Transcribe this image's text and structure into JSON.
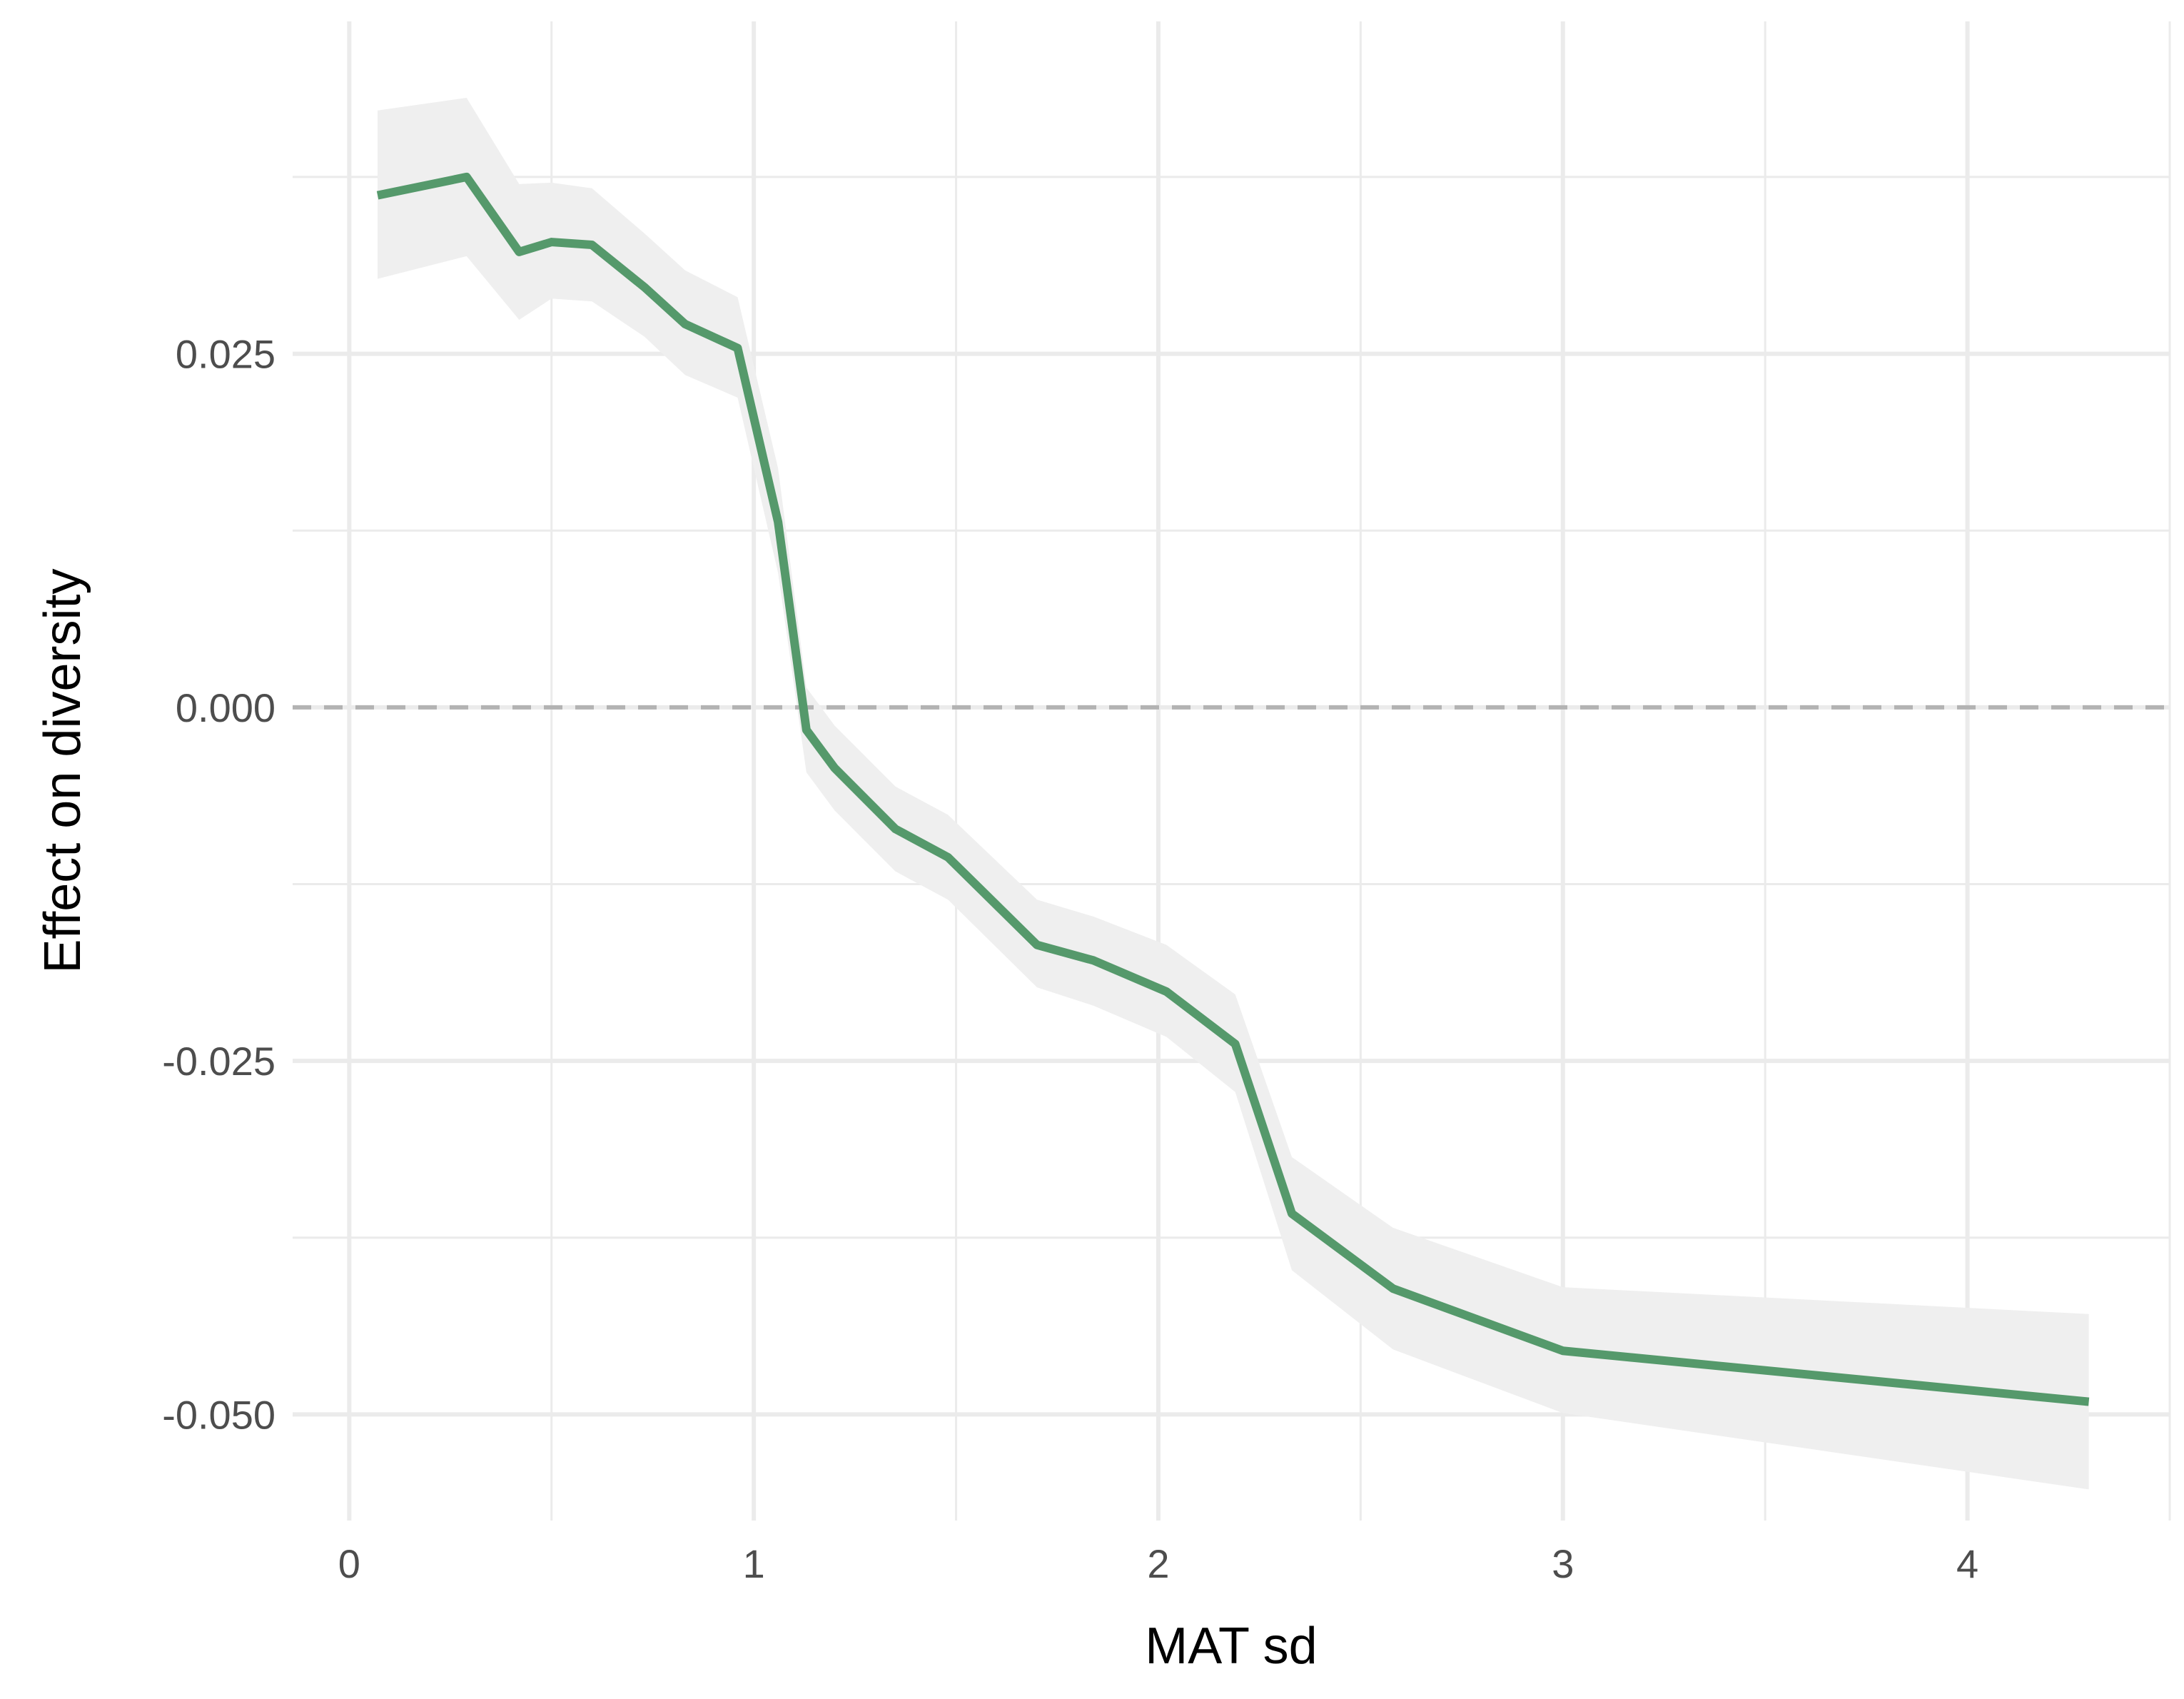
{
  "chart_data": {
    "type": "line",
    "title": "",
    "xlabel": "MAT sd",
    "ylabel": "Effect on diversity",
    "xlim": [
      -0.14,
      4.5
    ],
    "ylim": [
      -0.0575,
      0.0485
    ],
    "x_ticks": [
      0,
      1,
      2,
      3,
      4
    ],
    "x_tick_labels": [
      "0",
      "1",
      "2",
      "3",
      "4"
    ],
    "x_minor_ticks": [
      0.5,
      1.5,
      2.5,
      3.5,
      4.5
    ],
    "y_ticks": [
      0.025,
      0.0,
      -0.025,
      -0.05
    ],
    "y_tick_labels": [
      "0.025",
      "0.000",
      "-0.025",
      "-0.050"
    ],
    "y_minor_ticks": [
      0.0375,
      0.0125,
      -0.0125,
      -0.0375
    ],
    "grid": true,
    "reference_line": {
      "y": 0,
      "style": "dashed",
      "color": "#b3b3b3"
    },
    "colors": {
      "line": "#55996b",
      "ribbon": "#efefef",
      "grid": "#ebebeb"
    },
    "series": [
      {
        "x": [
          0.07,
          0.29,
          0.42,
          0.5,
          0.6,
          0.73,
          0.83,
          0.96,
          1.06,
          1.13,
          1.2,
          1.35,
          1.48,
          1.7,
          1.84,
          2.02,
          2.19,
          2.33,
          2.58,
          3.0,
          4.3
        ],
        "y": [
          0.0362,
          0.0375,
          0.0322,
          0.0329,
          0.0327,
          0.0297,
          0.0271,
          0.0254,
          0.0131,
          -0.0016,
          -0.0043,
          -0.0086,
          -0.0106,
          -0.0168,
          -0.0179,
          -0.0201,
          -0.0238,
          -0.0358,
          -0.0411,
          -0.0455,
          -0.0491
        ],
        "lower": [
          0.0303,
          0.0319,
          0.0274,
          0.0289,
          0.0287,
          0.0262,
          0.0235,
          0.0219,
          0.0095,
          -0.0046,
          -0.0073,
          -0.0116,
          -0.0136,
          -0.0198,
          -0.0211,
          -0.0233,
          -0.0272,
          -0.0398,
          -0.0454,
          -0.0499,
          -0.0553
        ],
        "upper": [
          0.0422,
          0.0431,
          0.037,
          0.0371,
          0.0367,
          0.0335,
          0.0309,
          0.029,
          0.0169,
          0.0014,
          -0.0013,
          -0.0056,
          -0.0076,
          -0.0136,
          -0.0148,
          -0.0168,
          -0.0203,
          -0.0318,
          -0.0368,
          -0.041,
          -0.0429
        ]
      }
    ]
  }
}
